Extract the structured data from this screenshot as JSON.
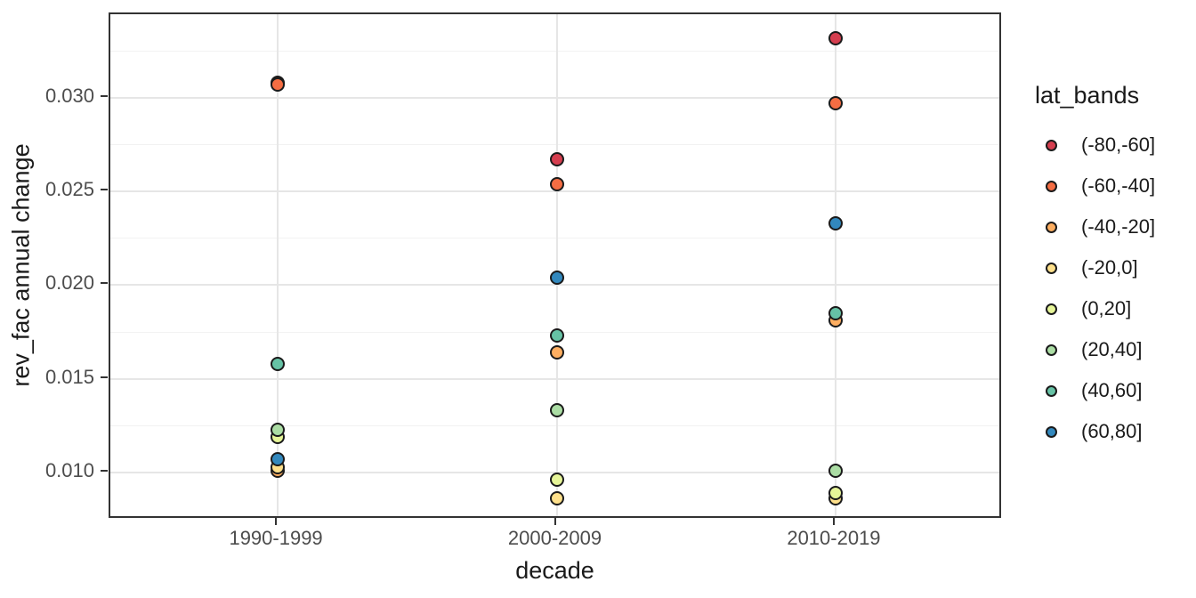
{
  "chart_data": {
    "type": "scatter",
    "title": "",
    "xlabel": "decade",
    "ylabel": "rev_fac annual change",
    "categories": [
      "1990-1999",
      "2000-2009",
      "2010-2019"
    ],
    "series": [
      {
        "name": "(-80,-60]",
        "color": "#d53e4f",
        "values": [
          0.0308,
          0.0267,
          0.0332
        ]
      },
      {
        "name": "(-60,-40]",
        "color": "#f46d43",
        "values": [
          0.0307,
          0.0254,
          0.0297
        ]
      },
      {
        "name": "(-40,-20]",
        "color": "#fdae61",
        "values": [
          0.0101,
          0.0164,
          0.0181
        ]
      },
      {
        "name": "(-20,0]",
        "color": "#fee08b",
        "values": [
          0.0103,
          0.0086,
          0.0086
        ]
      },
      {
        "name": "(0,20]",
        "color": "#e6f598",
        "values": [
          0.0119,
          0.0096,
          0.0089
        ]
      },
      {
        "name": "(20,40]",
        "color": "#abdda4",
        "values": [
          0.0123,
          0.0133,
          0.0101
        ]
      },
      {
        "name": "(40,60]",
        "color": "#66c2a5",
        "values": [
          0.0158,
          0.0173,
          0.0185
        ]
      },
      {
        "name": "(60,80]",
        "color": "#3288bd",
        "values": [
          0.0107,
          0.0204,
          0.0233
        ]
      }
    ],
    "legend": {
      "title": "lat_bands",
      "position": "right"
    },
    "ylim": [
      0.00748,
      0.03446
    ],
    "yticks": [
      0.01,
      0.015,
      0.02,
      0.025,
      0.03
    ],
    "ytick_labels": [
      "0.010",
      "0.015",
      "0.020",
      "0.025",
      "0.030"
    ],
    "yminor": [
      0.0125,
      0.0175,
      0.0225,
      0.0275,
      0.0325
    ],
    "grid": true,
    "colors": {
      "point_outline": "#1a1a1a",
      "tick_text": "#4d4d4d",
      "title_text": "#1a1a1a",
      "grid_major": "#e6e6e6",
      "grid_minor": "#f2f2f2",
      "panel_border": "#333333",
      "background": "#ffffff"
    }
  }
}
